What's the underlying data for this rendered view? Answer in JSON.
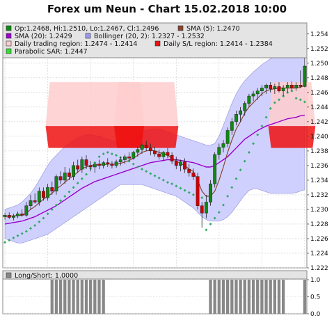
{
  "chart_data": {
    "type": "candlestick",
    "title": "Forex um Neun - Chart 15.02.2018 10:00",
    "colors": {
      "background": "#ffffff",
      "plot_bg": "#ffffff",
      "grid": "#cccccc",
      "bollinger_fill": "#ccccff",
      "bollinger_edge": "#9999dd",
      "candle_up": "#118811",
      "candle_down": "#cc0000",
      "sma5": "#884433",
      "sma20": "#9900cc",
      "sar": "#33aa66",
      "trading_region": "#ffcccc",
      "sl_region": "#ee1111",
      "sl_region_dark": "#cc1144",
      "longshort": "#888888"
    },
    "y_axis": {
      "ylim": [
        1.222,
        1.2555
      ],
      "ticks": [
        "1.222",
        "1.224",
        "1.226",
        "1.228",
        "1.230",
        "1.232",
        "1.234",
        "1.236",
        "1.238",
        "1.240",
        "1.242",
        "1.244",
        "1.246",
        "1.248",
        "1.250",
        "1.252",
        "1.254"
      ]
    },
    "legend": [
      {
        "swatch": "#118811",
        "text": "Op:1.2468, Hi:1.2510, Lo:1.2467, Cl:1.2496"
      },
      {
        "swatch": "#884433",
        "text": "SMA (5): 1.2470"
      },
      {
        "swatch": "#9900cc",
        "text": "SMA (20): 1.2429"
      },
      {
        "swatch": "#9999ee",
        "text": "Bollinger (20, 2): 1.2327 - 1.2532"
      },
      {
        "swatch": "#ffcccc",
        "text": "Daily trading region: 1.2474 - 1.2414"
      },
      {
        "swatch": "#ee1111",
        "text": "Daily S/L region: 1.2414 - 1.2384"
      },
      {
        "swatch": "#33dd33",
        "text": "Parabolic SAR: 1.2447"
      }
    ],
    "candles": [
      [
        1.229,
        1.2295,
        1.2286,
        1.2292
      ],
      [
        1.2292,
        1.2296,
        1.2287,
        1.2289
      ],
      [
        1.2289,
        1.2294,
        1.2285,
        1.2291
      ],
      [
        1.2291,
        1.2297,
        1.2288,
        1.2294
      ],
      [
        1.2294,
        1.23,
        1.229,
        1.2292
      ],
      [
        1.2292,
        1.231,
        1.229,
        1.2305
      ],
      [
        1.2305,
        1.232,
        1.23,
        1.2312
      ],
      [
        1.2312,
        1.2322,
        1.2308,
        1.231
      ],
      [
        1.231,
        1.233,
        1.2305,
        1.2325
      ],
      [
        1.2325,
        1.233,
        1.2312,
        1.2316
      ],
      [
        1.2316,
        1.2335,
        1.2312,
        1.233
      ],
      [
        1.233,
        1.2338,
        1.232,
        1.2325
      ],
      [
        1.2325,
        1.2348,
        1.232,
        1.2345
      ],
      [
        1.2345,
        1.2352,
        1.2335,
        1.234
      ],
      [
        1.234,
        1.2358,
        1.2335,
        1.235
      ],
      [
        1.235,
        1.2356,
        1.234,
        1.2345
      ],
      [
        1.2345,
        1.2365,
        1.234,
        1.236
      ],
      [
        1.236,
        1.2368,
        1.235,
        1.2355
      ],
      [
        1.2355,
        1.2372,
        1.235,
        1.2368
      ],
      [
        1.2368,
        1.2374,
        1.2355,
        1.236
      ],
      [
        1.236,
        1.2366,
        1.2352,
        1.2358
      ],
      [
        1.2358,
        1.2364,
        1.235,
        1.2362
      ],
      [
        1.2362,
        1.2368,
        1.2355,
        1.236
      ],
      [
        1.236,
        1.2366,
        1.2356,
        1.2364
      ],
      [
        1.2364,
        1.237,
        1.2358,
        1.2362
      ],
      [
        1.2362,
        1.2366,
        1.2356,
        1.236
      ],
      [
        1.236,
        1.2368,
        1.2357,
        1.2365
      ],
      [
        1.2365,
        1.2372,
        1.236,
        1.2368
      ],
      [
        1.2368,
        1.2375,
        1.2362,
        1.2372
      ],
      [
        1.2372,
        1.2378,
        1.2366,
        1.237
      ],
      [
        1.237,
        1.238,
        1.2368,
        1.2378
      ],
      [
        1.2378,
        1.2386,
        1.2372,
        1.2382
      ],
      [
        1.2382,
        1.239,
        1.2376,
        1.2388
      ],
      [
        1.2388,
        1.2394,
        1.238,
        1.2384
      ],
      [
        1.2384,
        1.239,
        1.2374,
        1.238
      ],
      [
        1.238,
        1.2386,
        1.2372,
        1.2376
      ],
      [
        1.2376,
        1.2382,
        1.2368,
        1.2372
      ],
      [
        1.2372,
        1.238,
        1.2366,
        1.2378
      ],
      [
        1.2378,
        1.2384,
        1.237,
        1.2374
      ],
      [
        1.2374,
        1.2378,
        1.2362,
        1.2366
      ],
      [
        1.2366,
        1.2372,
        1.2355,
        1.236
      ],
      [
        1.236,
        1.2368,
        1.2352,
        1.2365
      ],
      [
        1.2365,
        1.237,
        1.235,
        1.2355
      ],
      [
        1.2355,
        1.2362,
        1.2345,
        1.235
      ],
      [
        1.235,
        1.2356,
        1.234,
        1.2345
      ],
      [
        1.2345,
        1.235,
        1.23,
        1.2305
      ],
      [
        1.2305,
        1.231,
        1.2275,
        1.2295
      ],
      [
        1.2295,
        1.232,
        1.2288,
        1.231
      ],
      [
        1.231,
        1.234,
        1.2305,
        1.2335
      ],
      [
        1.2335,
        1.2378,
        1.233,
        1.2375
      ],
      [
        1.2375,
        1.239,
        1.2368,
        1.2385
      ],
      [
        1.2385,
        1.2395,
        1.2378,
        1.239
      ],
      [
        1.239,
        1.2412,
        1.2385,
        1.2408
      ],
      [
        1.2408,
        1.2425,
        1.2402,
        1.242
      ],
      [
        1.242,
        1.2435,
        1.2415,
        1.243
      ],
      [
        1.243,
        1.244,
        1.242,
        1.2435
      ],
      [
        1.2435,
        1.2448,
        1.2428,
        1.2445
      ],
      [
        1.2445,
        1.2458,
        1.244,
        1.2455
      ],
      [
        1.2455,
        1.2462,
        1.2448,
        1.2458
      ],
      [
        1.2458,
        1.2466,
        1.245,
        1.2462
      ],
      [
        1.2462,
        1.247,
        1.2455,
        1.2466
      ],
      [
        1.2466,
        1.2472,
        1.2458,
        1.247
      ],
      [
        1.247,
        1.2474,
        1.246,
        1.2465
      ],
      [
        1.2465,
        1.2472,
        1.2458,
        1.2468
      ],
      [
        1.2468,
        1.2474,
        1.246,
        1.2462
      ],
      [
        1.2462,
        1.247,
        1.2455,
        1.2466
      ],
      [
        1.2466,
        1.2474,
        1.246,
        1.247
      ],
      [
        1.247,
        1.2475,
        1.2462,
        1.2466
      ],
      [
        1.2466,
        1.2474,
        1.2462,
        1.247
      ],
      [
        1.247,
        1.249,
        1.2466,
        1.2468
      ],
      [
        1.2468,
        1.251,
        1.2467,
        1.2496
      ]
    ],
    "sma5": [
      1.229,
      1.2291,
      1.2291,
      1.2292,
      1.2292,
      1.2295,
      1.23,
      1.2304,
      1.2309,
      1.2314,
      1.2318,
      1.2322,
      1.2328,
      1.2332,
      1.2337,
      1.2342,
      1.2346,
      1.2351,
      1.2356,
      1.2358,
      1.236,
      1.2361,
      1.2361,
      1.2361,
      1.2362,
      1.2362,
      1.2362,
      1.2363,
      1.2365,
      1.2367,
      1.237,
      1.2374,
      1.2378,
      1.238,
      1.2381,
      1.238,
      1.2378,
      1.2376,
      1.2374,
      1.237,
      1.2366,
      1.2363,
      1.236,
      1.2355,
      1.2352,
      1.234,
      1.2325,
      1.2318,
      1.2318,
      1.2325,
      1.234,
      1.2358,
      1.2378,
      1.2395,
      1.241,
      1.242,
      1.2432,
      1.244,
      1.2446,
      1.2452,
      1.2458,
      1.2462,
      1.2464,
      1.2465,
      1.2466,
      1.2466,
      1.2466,
      1.2466,
      1.2466,
      1.2467,
      1.247
    ],
    "sma20": [
      1.228,
      1.2281,
      1.2282,
      1.2283,
      1.2284,
      1.2286,
      1.2288,
      1.229,
      1.2293,
      1.2296,
      1.2299,
      1.2302,
      1.2305,
      1.2309,
      1.2313,
      1.2317,
      1.2321,
      1.2325,
      1.2329,
      1.2332,
      1.2335,
      1.2338,
      1.234,
      1.2342,
      1.2344,
      1.2346,
      1.2348,
      1.235,
      1.2352,
      1.2354,
      1.2356,
      1.2358,
      1.236,
      1.2362,
      1.2364,
      1.2365,
      1.2366,
      1.2367,
      1.2368,
      1.2368,
      1.2368,
      1.2367,
      1.2366,
      1.2365,
      1.2364,
      1.2362,
      1.236,
      1.2358,
      1.2358,
      1.236,
      1.2364,
      1.2368,
      1.2372,
      1.2378,
      1.2384,
      1.239,
      1.2396,
      1.24,
      1.2404,
      1.2408,
      1.2411,
      1.2414,
      1.2416,
      1.2418,
      1.242,
      1.2422,
      1.2424,
      1.2425,
      1.2426,
      1.2428,
      1.2429
    ],
    "boll_upper": [
      1.23,
      1.2302,
      1.2304,
      1.2306,
      1.231,
      1.2316,
      1.2322,
      1.233,
      1.234,
      1.235,
      1.236,
      1.2368,
      1.2374,
      1.238,
      1.2386,
      1.239,
      1.2394,
      1.2398,
      1.24,
      1.2402,
      1.2402,
      1.2401,
      1.24,
      1.2398,
      1.2396,
      1.2394,
      1.2392,
      1.239,
      1.2392,
      1.2394,
      1.2398,
      1.2402,
      1.2406,
      1.2408,
      1.241,
      1.241,
      1.241,
      1.2408,
      1.2406,
      1.2404,
      1.2402,
      1.24,
      1.2398,
      1.2396,
      1.2394,
      1.2392,
      1.239,
      1.2388,
      1.2388,
      1.239,
      1.24,
      1.2415,
      1.243,
      1.2445,
      1.2458,
      1.2468,
      1.2476,
      1.2482,
      1.2488,
      1.2493,
      1.2498,
      1.2502,
      1.2506,
      1.251,
      1.2514,
      1.2518,
      1.2522,
      1.2525,
      1.2528,
      1.253,
      1.2532
    ],
    "boll_lower": [
      1.226,
      1.2258,
      1.2256,
      1.2254,
      1.2254,
      1.2256,
      1.2258,
      1.226,
      1.2262,
      1.2264,
      1.2266,
      1.227,
      1.2274,
      1.2278,
      1.2282,
      1.2286,
      1.229,
      1.2294,
      1.2298,
      1.2302,
      1.2306,
      1.231,
      1.2314,
      1.2318,
      1.2322,
      1.2326,
      1.233,
      1.2334,
      1.2334,
      1.2334,
      1.2334,
      1.2334,
      1.2334,
      1.2332,
      1.233,
      1.2328,
      1.2326,
      1.2324,
      1.2322,
      1.232,
      1.2318,
      1.2314,
      1.231,
      1.2306,
      1.2302,
      1.2296,
      1.229,
      1.2286,
      1.2284,
      1.2284,
      1.2284,
      1.2286,
      1.229,
      1.2296,
      1.2304,
      1.2312,
      1.232,
      1.2326,
      1.2328,
      1.2328,
      1.2326,
      1.2324,
      1.2322,
      1.2322,
      1.2322,
      1.2322,
      1.2322,
      1.2322,
      1.2323,
      1.2325,
      1.2327
    ],
    "sar": [
      1.2255,
      1.2258,
      1.2261,
      1.2264,
      1.2267,
      1.227,
      1.2274,
      1.2278,
      1.2283,
      1.2288,
      1.2294,
      1.23,
      1.2306,
      1.2312,
      1.2318,
      1.2324,
      1.233,
      1.2336,
      1.2342,
      1.2348,
      1.2356,
      1.2364,
      1.2372,
      1.2376,
      1.2378,
      1.2376,
      1.2374,
      1.2371,
      1.2369,
      1.2366,
      1.2362,
      1.2358,
      1.2355,
      1.2352,
      1.2349,
      1.2346,
      1.2343,
      1.234,
      1.2337,
      1.2335,
      1.2332,
      1.2329,
      1.2326,
      1.2323,
      1.232,
      1.2318,
      1.2316,
      1.2272,
      1.228,
      1.2288,
      1.2296,
      1.2306,
      1.2318,
      1.233,
      1.2342,
      1.2354,
      1.2366,
      1.2378,
      1.239,
      1.2402,
      1.2414,
      1.2426,
      1.2438,
      1.2446,
      1.245,
      1.2455,
      1.246,
      1.2462,
      1.2452,
      1.245,
      1.2447
    ],
    "regions": [
      {
        "start": 10,
        "end": 32,
        "trading": [
          1.2414,
          1.2474
        ],
        "sl": [
          1.2384,
          1.2414
        ]
      },
      {
        "start": 26,
        "end": 40,
        "trading": [
          1.2414,
          1.2474
        ],
        "sl": [
          1.2384,
          1.2414
        ]
      },
      {
        "start": 62,
        "end": 72,
        "trading": [
          1.2414,
          1.2474
        ],
        "sl": [
          1.2384,
          1.2414
        ]
      }
    ],
    "longshort": {
      "label": "Long/Short: 1.0000",
      "ylim": [
        0,
        1
      ],
      "ticks": [
        "0.0",
        "0.5",
        "1.0"
      ],
      "values": [
        0,
        0,
        0,
        0,
        0,
        0,
        0,
        0,
        0,
        0,
        0,
        1,
        1,
        1,
        1,
        1,
        1,
        1,
        1,
        1,
        1,
        1,
        1,
        1,
        0,
        0,
        0,
        0,
        0,
        0,
        0,
        0,
        0,
        0,
        0,
        0,
        0,
        0,
        0,
        0,
        0,
        0,
        0,
        0,
        0,
        0,
        0,
        0,
        1,
        1,
        1,
        1,
        1,
        1,
        1,
        1,
        1,
        1,
        1,
        1,
        1,
        1,
        1,
        1,
        1,
        1,
        0,
        0,
        0,
        0,
        1
      ]
    }
  }
}
